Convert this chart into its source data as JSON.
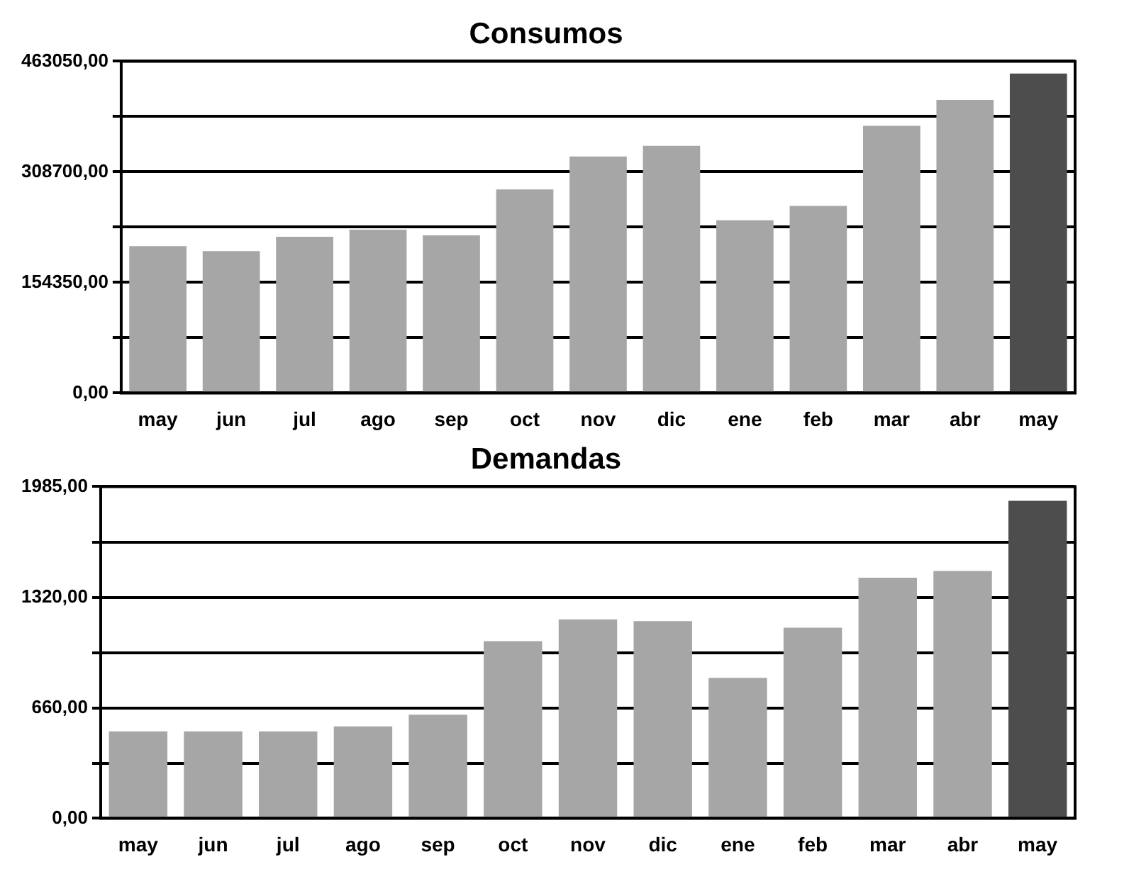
{
  "chart_data": [
    {
      "type": "bar",
      "title": "Consumos",
      "categories": [
        "may",
        "jun",
        "jul",
        "ago",
        "sep",
        "oct",
        "nov",
        "dic",
        "ene",
        "feb",
        "mar",
        "abr",
        "may"
      ],
      "values": [
        205000,
        198000,
        218000,
        228000,
        220000,
        284000,
        330000,
        345000,
        241000,
        261000,
        373000,
        409000,
        446000
      ],
      "colors": [
        "#a6a6a6",
        "#a6a6a6",
        "#a6a6a6",
        "#a6a6a6",
        "#a6a6a6",
        "#a6a6a6",
        "#a6a6a6",
        "#a6a6a6",
        "#a6a6a6",
        "#a6a6a6",
        "#a6a6a6",
        "#a6a6a6",
        "#4d4d4d"
      ],
      "ylim": [
        0,
        463050
      ],
      "yticks": [
        {
          "value": 0,
          "label": "0,00"
        },
        {
          "value": 77175,
          "label": null
        },
        {
          "value": 154350,
          "label": "154350,00"
        },
        {
          "value": 231525,
          "label": null
        },
        {
          "value": 308700,
          "label": "308700,00"
        },
        {
          "value": 385875,
          "label": null
        },
        {
          "value": 463050,
          "label": "463050,00"
        }
      ],
      "grid": "y"
    },
    {
      "type": "bar",
      "title": "Demandas",
      "categories": [
        "may",
        "jun",
        "jul",
        "ago",
        "sep",
        "oct",
        "nov",
        "dic",
        "ene",
        "feb",
        "mar",
        "abr",
        "may"
      ],
      "values": [
        520,
        520,
        520,
        550,
        620,
        1060,
        1190,
        1180,
        840,
        1140,
        1440,
        1480,
        1900
      ],
      "colors": [
        "#a6a6a6",
        "#a6a6a6",
        "#a6a6a6",
        "#a6a6a6",
        "#a6a6a6",
        "#a6a6a6",
        "#a6a6a6",
        "#a6a6a6",
        "#a6a6a6",
        "#a6a6a6",
        "#a6a6a6",
        "#a6a6a6",
        "#4d4d4d"
      ],
      "ylim": [
        0,
        1985
      ],
      "yticks": [
        {
          "value": 0,
          "label": "0,00"
        },
        {
          "value": 330,
          "label": null
        },
        {
          "value": 660,
          "label": "660,00"
        },
        {
          "value": 990,
          "label": null
        },
        {
          "value": 1320,
          "label": "1320,00"
        },
        {
          "value": 1650,
          "label": null
        },
        {
          "value": 1985,
          "label": "1985,00"
        }
      ],
      "grid": "y"
    }
  ]
}
